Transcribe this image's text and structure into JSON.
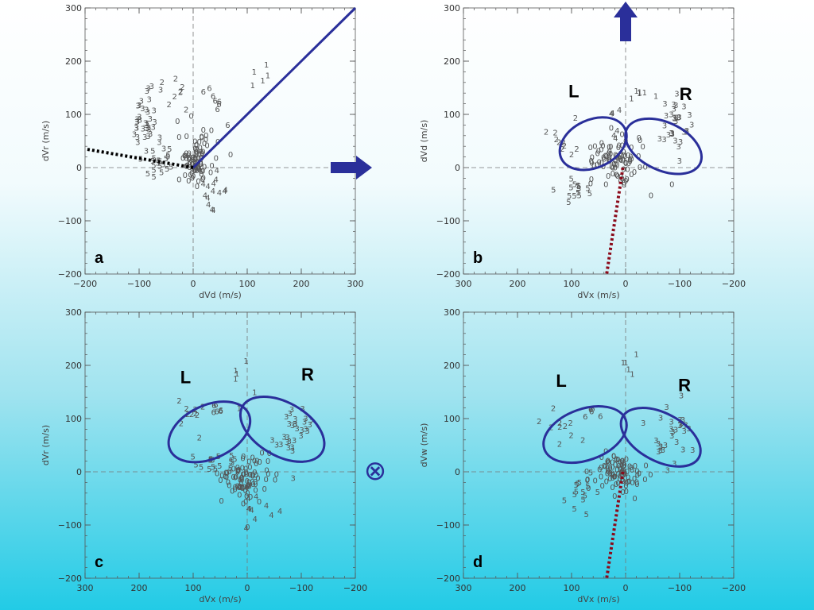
{
  "chart_data": [
    {
      "id": "a",
      "type": "scatter",
      "panel_label": "a",
      "xlabel": "dVd  (m/s)",
      "ylabel": "dVr  (m/s)",
      "xlim": [
        -200,
        300
      ],
      "ylim": [
        -200,
        300
      ],
      "x_ticks": [
        -200,
        -100,
        0,
        100,
        200,
        300
      ],
      "y_ticks": [
        -200,
        -100,
        0,
        100,
        200,
        300
      ],
      "clusters": [
        {
          "label": "0",
          "center": [
            5,
            10
          ],
          "spread": [
            30,
            45
          ],
          "n": 90
        },
        {
          "label": "3",
          "center": [
            -90,
            80
          ],
          "spread": [
            28,
            60
          ],
          "n": 40
        },
        {
          "label": "5",
          "center": [
            -60,
            5
          ],
          "spread": [
            30,
            30
          ],
          "n": 20
        },
        {
          "label": "4",
          "center": [
            40,
            -50
          ],
          "spread": [
            25,
            40
          ],
          "n": 14
        },
        {
          "label": "2",
          "center": [
            -30,
            130
          ],
          "spread": [
            25,
            40
          ],
          "n": 8
        },
        {
          "label": "6",
          "center": [
            40,
            120
          ],
          "spread": [
            25,
            35
          ],
          "n": 8
        },
        {
          "label": "1",
          "center": [
            120,
            170
          ],
          "spread": [
            20,
            45
          ],
          "n": 5
        }
      ],
      "lines": [
        {
          "style": "solid",
          "color": "#2a2f9a",
          "points": [
            [
              0,
              0
            ],
            [
              300,
              300
            ]
          ]
        },
        {
          "style": "dotted",
          "color": "#000000",
          "points": [
            [
              0,
              0
            ],
            [
              -200,
              35
            ]
          ]
        }
      ],
      "arrow": {
        "direction": "right",
        "at": [
          255,
          0
        ]
      }
    },
    {
      "id": "b",
      "type": "scatter",
      "panel_label": "b",
      "xlabel": "dVx  (m/s)",
      "ylabel": "dVd  (m/s)",
      "xlim": [
        300,
        -200
      ],
      "ylim": [
        -200,
        300
      ],
      "x_ticks": [
        300,
        200,
        100,
        0,
        -100,
        -200
      ],
      "y_ticks": [
        -200,
        -100,
        0,
        100,
        200,
        300
      ],
      "clusters": [
        {
          "label": "0",
          "center": [
            20,
            10
          ],
          "spread": [
            45,
            35
          ],
          "n": 90
        },
        {
          "label": "3",
          "center": [
            -90,
            80
          ],
          "spread": [
            30,
            50
          ],
          "n": 30
        },
        {
          "label": "2",
          "center": [
            110,
            50
          ],
          "spread": [
            35,
            35
          ],
          "n": 10
        },
        {
          "label": "5",
          "center": [
            90,
            -45
          ],
          "spread": [
            25,
            20
          ],
          "n": 14
        },
        {
          "label": "1",
          "center": [
            -20,
            130
          ],
          "spread": [
            30,
            15
          ],
          "n": 6
        },
        {
          "label": "4",
          "center": [
            20,
            70
          ],
          "spread": [
            20,
            30
          ],
          "n": 6
        }
      ],
      "ellipses": [
        {
          "name": "L",
          "center": [
            60,
            45
          ],
          "rx": 65,
          "ry": 45,
          "angle": -25
        },
        {
          "name": "R",
          "center": [
            -70,
            40
          ],
          "rx": 75,
          "ry": 45,
          "angle": 25
        }
      ],
      "lines": [
        {
          "style": "dotted",
          "color": "#8b0a1a",
          "points": [
            [
              5,
              0
            ],
            [
              35,
              -200
            ]
          ]
        }
      ],
      "arrow": {
        "direction": "up",
        "at": [
          0,
          290
        ]
      },
      "region_labels": [
        "L",
        "R"
      ]
    },
    {
      "id": "c",
      "type": "scatter",
      "panel_label": "c",
      "xlabel": "dVx  (m/s)",
      "ylabel": "dVr  (m/s)",
      "xlim": [
        300,
        -200
      ],
      "ylim": [
        -200,
        300
      ],
      "x_ticks": [
        300,
        200,
        100,
        0,
        -100,
        -200
      ],
      "y_ticks": [
        -200,
        -100,
        0,
        100,
        200,
        300
      ],
      "clusters": [
        {
          "label": "0",
          "center": [
            5,
            -20
          ],
          "spread": [
            45,
            40
          ],
          "n": 90
        },
        {
          "label": "3",
          "center": [
            -85,
            70
          ],
          "spread": [
            35,
            50
          ],
          "n": 30
        },
        {
          "label": "2",
          "center": [
            110,
            100
          ],
          "spread": [
            40,
            35
          ],
          "n": 10
        },
        {
          "label": "5",
          "center": [
            60,
            10
          ],
          "spread": [
            40,
            20
          ],
          "n": 16
        },
        {
          "label": "6",
          "center": [
            50,
            110
          ],
          "spread": [
            20,
            15
          ],
          "n": 6
        },
        {
          "label": "1",
          "center": [
            5,
            160
          ],
          "spread": [
            25,
            50
          ],
          "n": 6
        },
        {
          "label": "4",
          "center": [
            -20,
            -80
          ],
          "spread": [
            30,
            40
          ],
          "n": 10
        }
      ],
      "ellipses": [
        {
          "name": "L",
          "center": [
            70,
            75
          ],
          "rx": 80,
          "ry": 50,
          "angle": -25
        },
        {
          "name": "R",
          "center": [
            -65,
            80
          ],
          "rx": 85,
          "ry": 50,
          "angle": 30
        }
      ],
      "symbol": "⊗",
      "region_labels": [
        "L",
        "R"
      ]
    },
    {
      "id": "d",
      "type": "scatter",
      "panel_label": "d",
      "xlabel": "dVx  (m/s)",
      "ylabel": "dVw  (m/s)",
      "xlim": [
        300,
        -200
      ],
      "ylim": [
        -200,
        300
      ],
      "x_ticks": [
        300,
        200,
        100,
        0,
        -100,
        -200
      ],
      "y_ticks": [
        -200,
        -100,
        0,
        100,
        200,
        300
      ],
      "clusters": [
        {
          "label": "0",
          "center": [
            15,
            -5
          ],
          "spread": [
            45,
            35
          ],
          "n": 90
        },
        {
          "label": "3",
          "center": [
            -85,
            60
          ],
          "spread": [
            35,
            50
          ],
          "n": 30
        },
        {
          "label": "2",
          "center": [
            110,
            90
          ],
          "spread": [
            35,
            35
          ],
          "n": 10
        },
        {
          "label": "5",
          "center": [
            90,
            -40
          ],
          "spread": [
            30,
            35
          ],
          "n": 14
        },
        {
          "label": "6",
          "center": [
            60,
            110
          ],
          "spread": [
            20,
            15
          ],
          "n": 5
        },
        {
          "label": "1",
          "center": [
            -10,
            210
          ],
          "spread": [
            20,
            30
          ],
          "n": 5
        }
      ],
      "ellipses": [
        {
          "name": "L",
          "center": [
            75,
            70
          ],
          "rx": 80,
          "ry": 48,
          "angle": -20
        },
        {
          "name": "R",
          "center": [
            -65,
            65
          ],
          "rx": 80,
          "ry": 45,
          "angle": 28
        }
      ],
      "lines": [
        {
          "style": "dotted",
          "color": "#8b0a1a",
          "points": [
            [
              5,
              0
            ],
            [
              35,
              -200
            ]
          ]
        }
      ],
      "region_labels": [
        "L",
        "R"
      ]
    }
  ],
  "colors": {
    "ellipse": "#2a2f9a",
    "arrow": "#2a2f9a",
    "dash": "#777777",
    "frame": "#555555"
  }
}
